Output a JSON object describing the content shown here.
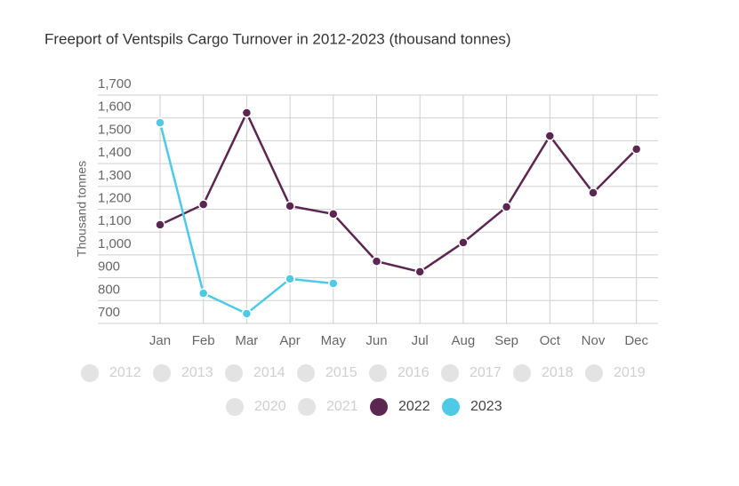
{
  "chart_data": {
    "type": "line",
    "title": "Freeport of Ventspils Cargo Turnover in 2012-2023 (thousand tonnes)",
    "y_label": "Thousand tonnes",
    "categories": [
      "Jan",
      "Feb",
      "Mar",
      "Apr",
      "May",
      "Jun",
      "Jul",
      "Aug",
      "Sep",
      "Oct",
      "Nov",
      "Dec"
    ],
    "series": [
      {
        "name": "2022",
        "color": "#5b2750",
        "values": [
          1132,
          1221,
          1622,
          1214,
          1179,
          972,
          926,
          1054,
          1210,
          1521,
          1272,
          1463
        ]
      },
      {
        "name": "2023",
        "color": "#4ec9e6",
        "values": [
          1579,
          832,
          743,
          895,
          875,
          null,
          null,
          null,
          null,
          null,
          null,
          null
        ]
      }
    ],
    "hidden_series": [
      "2012",
      "2013",
      "2014",
      "2015",
      "2016",
      "2017",
      "2018",
      "2019",
      "2020",
      "2021"
    ],
    "hidden_color": "#e3e3e3",
    "ylim": [
      700,
      1700
    ],
    "yticks": [
      {
        "value": 1700,
        "label": "1,700"
      },
      {
        "value": 1600,
        "label": "1,600"
      },
      {
        "value": 1500,
        "label": "1,500"
      },
      {
        "value": 1400,
        "label": "1,400"
      },
      {
        "value": 1300,
        "label": "1,300"
      },
      {
        "value": 1200,
        "label": "1,200"
      },
      {
        "value": 1100,
        "label": "1,100"
      },
      {
        "value": 1000,
        "label": "1,000"
      },
      900,
      800,
      700
    ],
    "grid": true
  }
}
